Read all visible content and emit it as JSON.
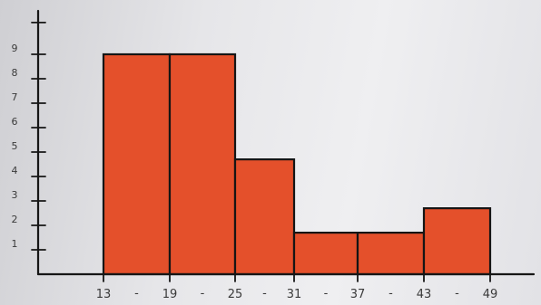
{
  "chart_data": {
    "type": "bar",
    "title": "",
    "xlabel": "",
    "ylabel": "",
    "x_edges": [
      "13",
      "19",
      "25",
      "31",
      "37",
      "43",
      "49"
    ],
    "class_separator": "-",
    "categories": [
      "13-19",
      "19-25",
      "25-31",
      "31-37",
      "37-43",
      "43-49"
    ],
    "values": [
      9,
      9,
      4.7,
      1.7,
      1.7,
      2.7
    ],
    "y_ticks": [
      "1",
      "2",
      "3",
      "4",
      "5",
      "6",
      "7",
      "8",
      "9"
    ],
    "ylim": [
      0,
      9.8
    ],
    "bar_color": "#e4502b",
    "grid": false
  }
}
